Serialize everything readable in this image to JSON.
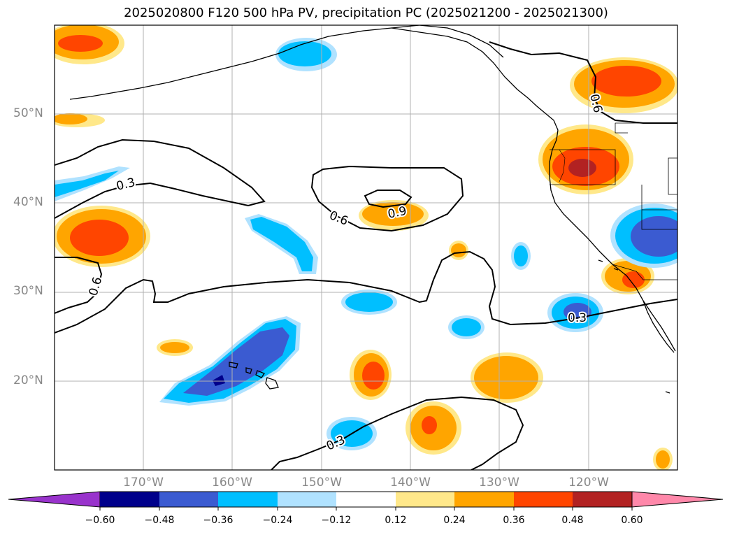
{
  "title": "2025020800 F120 500 hPa PV, precipitation PC (2025021200 - 2025021300)",
  "map": {
    "lat_labels": [
      "50°N",
      "40°N",
      "30°N",
      "20°N"
    ],
    "lon_labels": [
      "170°W",
      "160°W",
      "150°W",
      "140°W",
      "130°W",
      "120°W"
    ],
    "contour_labels": [
      "0.3",
      "0.6",
      "0.9",
      "0.6",
      "0.6",
      "0.3",
      "0.3"
    ]
  },
  "colorbar": {
    "ticks": [
      "−0.60",
      "−0.48",
      "−0.36",
      "−0.24",
      "−0.12",
      "0.12",
      "0.24",
      "0.36",
      "0.48",
      "0.60"
    ],
    "colors": [
      "#9933cc",
      "#00008b",
      "#3b5bd1",
      "#00bfff",
      "#b0e2ff",
      "#ffffff",
      "#ffe88a",
      "#ffa500",
      "#ff4500",
      "#b22222",
      "#ff88aa"
    ]
  },
  "palette": {
    "neg1": "#b0e2ff",
    "neg2": "#00bfff",
    "neg3": "#3b5bd1",
    "neg4": "#00008b",
    "pos1": "#ffe88a",
    "pos2": "#ffa500",
    "pos3": "#ff4500",
    "pos4": "#b22222"
  }
}
